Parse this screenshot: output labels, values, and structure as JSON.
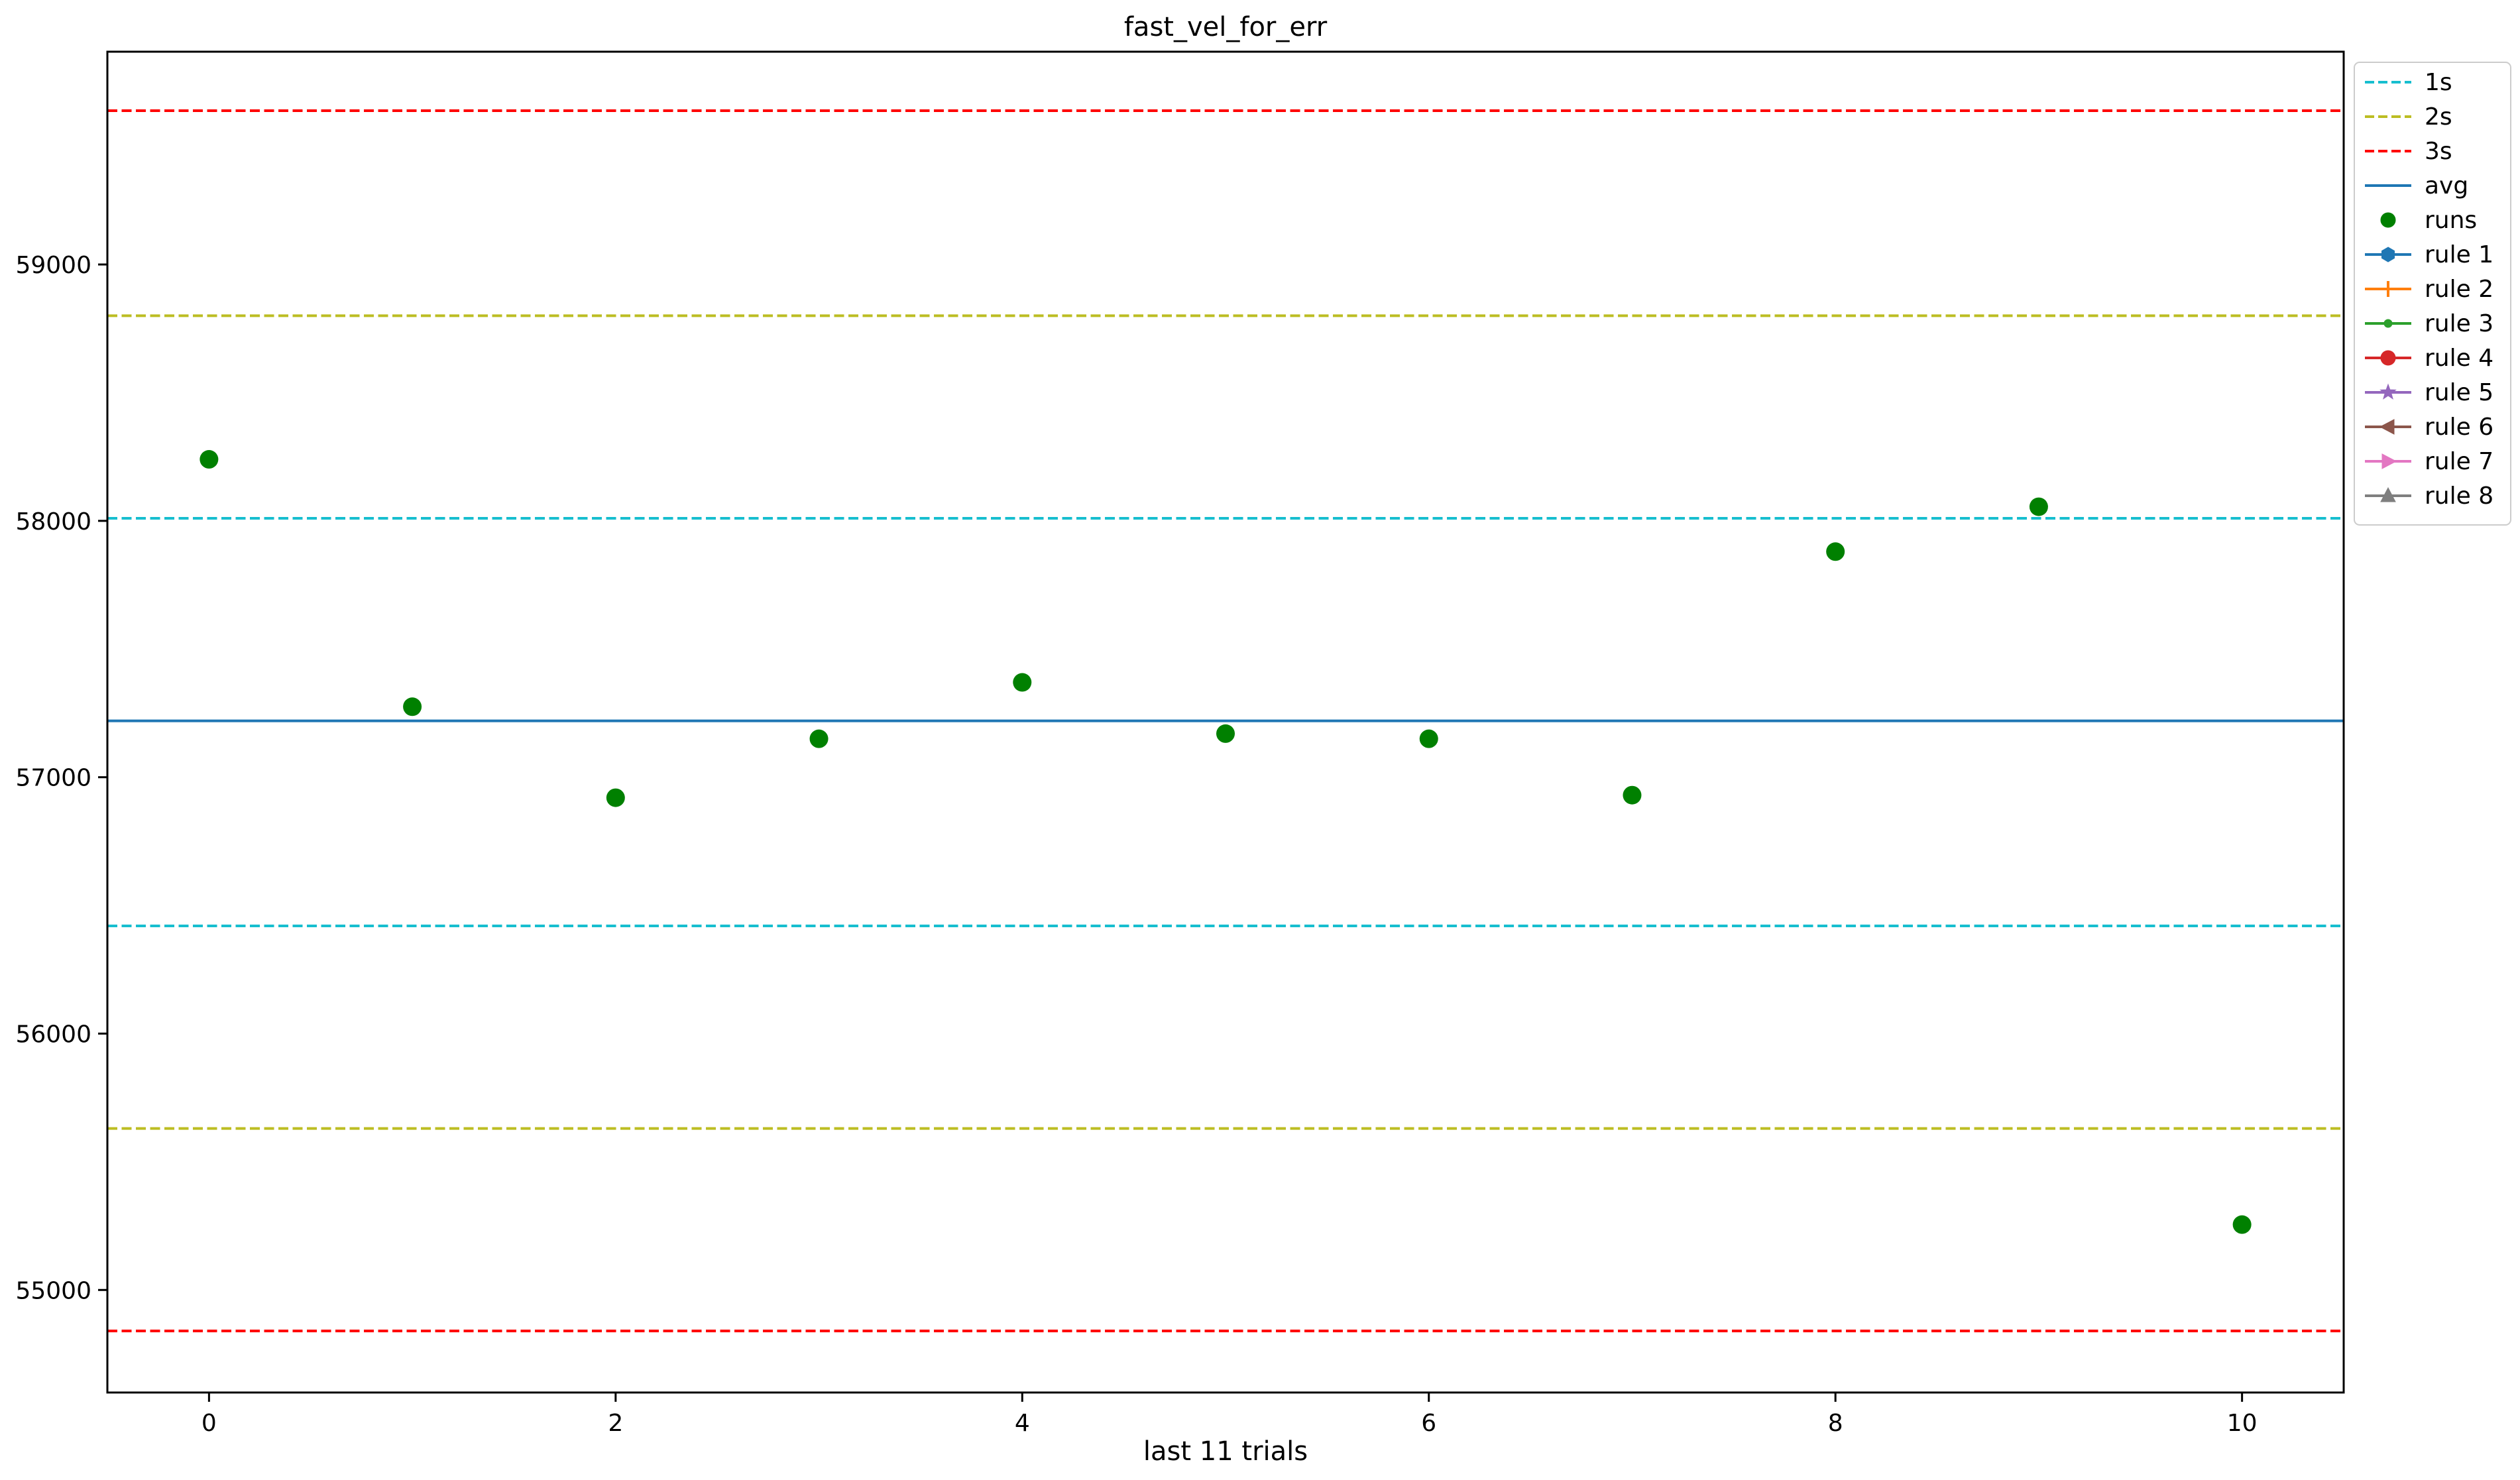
{
  "chart_data": {
    "type": "scatter",
    "title": "fast_vel_for_err",
    "xlabel": "last 11 trials",
    "ylabel": "",
    "xlim": [
      -0.5,
      10.5
    ],
    "ylim": [
      54600,
      59830
    ],
    "x_ticks": [
      0,
      2,
      4,
      6,
      8,
      10
    ],
    "y_ticks": [
      55000,
      56000,
      57000,
      58000,
      59000
    ],
    "grid": false,
    "legend_position": "outside-top-right",
    "reference_lines": [
      {
        "name": "1s",
        "values": [
          58010,
          56420
        ],
        "color": "#17becf",
        "style": "dashed"
      },
      {
        "name": "2s",
        "values": [
          58800,
          55630
        ],
        "color": "#bcbd22",
        "style": "dashed"
      },
      {
        "name": "3s",
        "values": [
          59600,
          54840
        ],
        "color": "#ff0000",
        "style": "dashed"
      },
      {
        "name": "avg",
        "values": [
          57220
        ],
        "color": "#1f77b4",
        "style": "solid"
      }
    ],
    "series": [
      {
        "name": "runs",
        "color": "#008000",
        "x": [
          0,
          1,
          2,
          3,
          4,
          5,
          6,
          7,
          8,
          9,
          10
        ],
        "y": [
          58240,
          57275,
          56920,
          57150,
          57370,
          57170,
          57150,
          56930,
          57880,
          58055,
          55255
        ]
      }
    ],
    "legend": [
      {
        "label": "1s",
        "color": "#17becf",
        "line": "dashed",
        "marker": "none"
      },
      {
        "label": "2s",
        "color": "#bcbd22",
        "line": "dashed",
        "marker": "none"
      },
      {
        "label": "3s",
        "color": "#ff0000",
        "line": "dashed",
        "marker": "none"
      },
      {
        "label": "avg",
        "color": "#1f77b4",
        "line": "solid",
        "marker": "none"
      },
      {
        "label": "runs",
        "color": "#008000",
        "line": "none",
        "marker": "circle"
      },
      {
        "label": "rule 1",
        "color": "#1f77b4",
        "line": "solid",
        "marker": "hexagon"
      },
      {
        "label": "rule 2",
        "color": "#ff7f0e",
        "line": "solid",
        "marker": "plus"
      },
      {
        "label": "rule 3",
        "color": "#2ca02c",
        "line": "solid",
        "marker": "point"
      },
      {
        "label": "rule 4",
        "color": "#d62728",
        "line": "solid",
        "marker": "circle"
      },
      {
        "label": "rule 5",
        "color": "#9467bd",
        "line": "solid",
        "marker": "star"
      },
      {
        "label": "rule 6",
        "color": "#8c564b",
        "line": "solid",
        "marker": "triangle-left"
      },
      {
        "label": "rule 7",
        "color": "#e377c2",
        "line": "solid",
        "marker": "triangle-right"
      },
      {
        "label": "rule 8",
        "color": "#7f7f7f",
        "line": "solid",
        "marker": "triangle-up"
      }
    ]
  }
}
